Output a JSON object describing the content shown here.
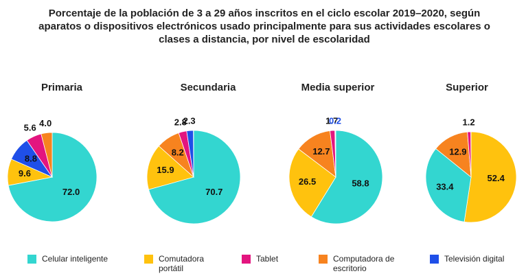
{
  "chart_data": {
    "type": "pie",
    "title": "Porcentaje de la población de 3 a 29 años inscritos en el ciclo escolar 2019–2020, según aparatos o dispositivos electrónicos usado principalmente para sus actividades escolares o clases a distancia, por nivel de escolaridad",
    "legend": [
      {
        "name": "Celular inteligente",
        "color": "#33d6d0"
      },
      {
        "name": "Comutadora portátil",
        "color": "#ffc20e"
      },
      {
        "name": "Tablet",
        "color": "#e3157f"
      },
      {
        "name": "Computadora de escritorio",
        "color": "#f7831f"
      },
      {
        "name": "Televisión digital",
        "color": "#1f4fe8"
      }
    ],
    "pies": [
      {
        "title": "Primaria",
        "categories": [
          "Celular inteligente",
          "Comutadora portátil",
          "Televisión digital",
          "Tablet",
          "Computadora de escritorio"
        ],
        "values": [
          72.0,
          9.6,
          8.8,
          5.6,
          4.0
        ],
        "value_labels": [
          "72.0",
          "9.6",
          "8.8",
          "5.6",
          "4.0"
        ]
      },
      {
        "title": "Secundaria",
        "categories": [
          "Celular inteligente",
          "Comutadora portátil",
          "Computadora de escritorio",
          "Tablet",
          "Televisión digital"
        ],
        "values": [
          70.7,
          15.9,
          8.2,
          2.8,
          2.3
        ],
        "value_labels": [
          "70.7",
          "15.9",
          "8.2",
          "2.8",
          "2.3"
        ]
      },
      {
        "title": "Media superior",
        "categories": [
          "Celular inteligente",
          "Comutadora portátil",
          "Computadora de escritorio",
          "Tablet",
          "Televisión digital"
        ],
        "values": [
          58.8,
          26.5,
          12.7,
          1.7,
          0.2
        ],
        "value_labels": [
          "58.8",
          "26.5",
          "12.7",
          "1.7",
          "0.2"
        ]
      },
      {
        "title": "Superior",
        "categories": [
          "Comutadora portátil",
          "Celular inteligente",
          "Computadora de escritorio",
          "Tablet"
        ],
        "values": [
          52.4,
          33.4,
          12.9,
          1.2
        ],
        "value_labels": [
          "52.4",
          "33.4",
          "12.9",
          "1.2"
        ]
      }
    ]
  }
}
